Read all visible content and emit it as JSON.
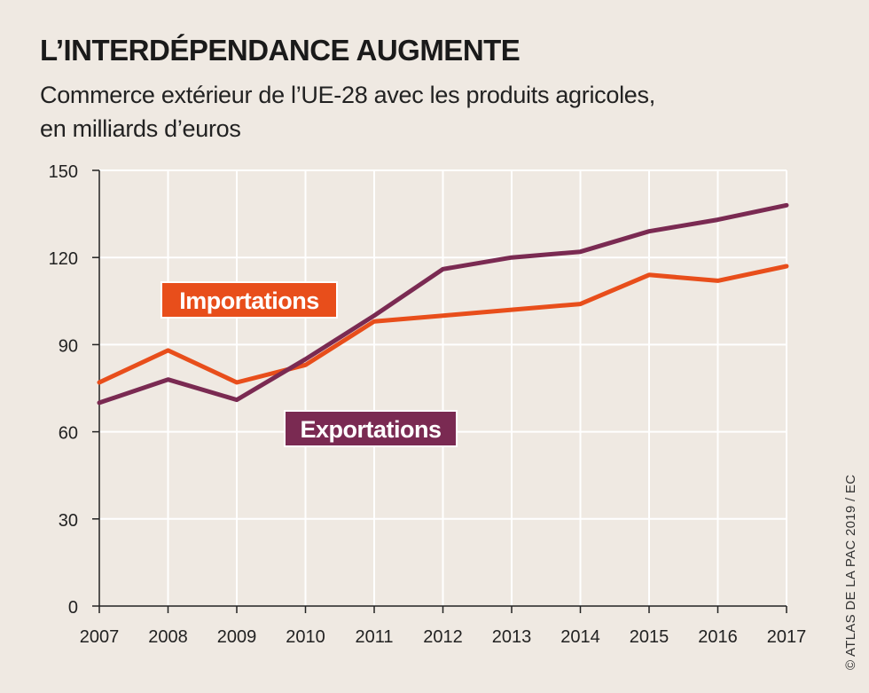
{
  "header": {
    "title": "L’INTERDÉPENDANCE AUGMENTE",
    "subtitle_line1": "Commerce extérieur de l’UE-28 avec les produits agricoles,",
    "subtitle_line2": "en milliards d’euros"
  },
  "credit": "© ATLAS DE LA PAC 2019 / EC",
  "chart_data": {
    "type": "line",
    "x": [
      "2007",
      "2008",
      "2009",
      "2010",
      "2011",
      "2012",
      "2013",
      "2014",
      "2015",
      "2016",
      "2017"
    ],
    "series": [
      {
        "name": "Importations",
        "color": "#e84e1b",
        "values": [
          77,
          88,
          77,
          83,
          98,
          100,
          102,
          104,
          114,
          112,
          117
        ]
      },
      {
        "name": "Exportations",
        "color": "#7a2a52",
        "values": [
          70,
          78,
          71,
          85,
          100,
          116,
          120,
          122,
          129,
          133,
          138
        ]
      }
    ],
    "ylim": [
      0,
      150
    ],
    "yticks": [
      0,
      30,
      60,
      90,
      120,
      150
    ],
    "grid": true,
    "legend": "inline labels",
    "xlabel": "",
    "ylabel": ""
  }
}
